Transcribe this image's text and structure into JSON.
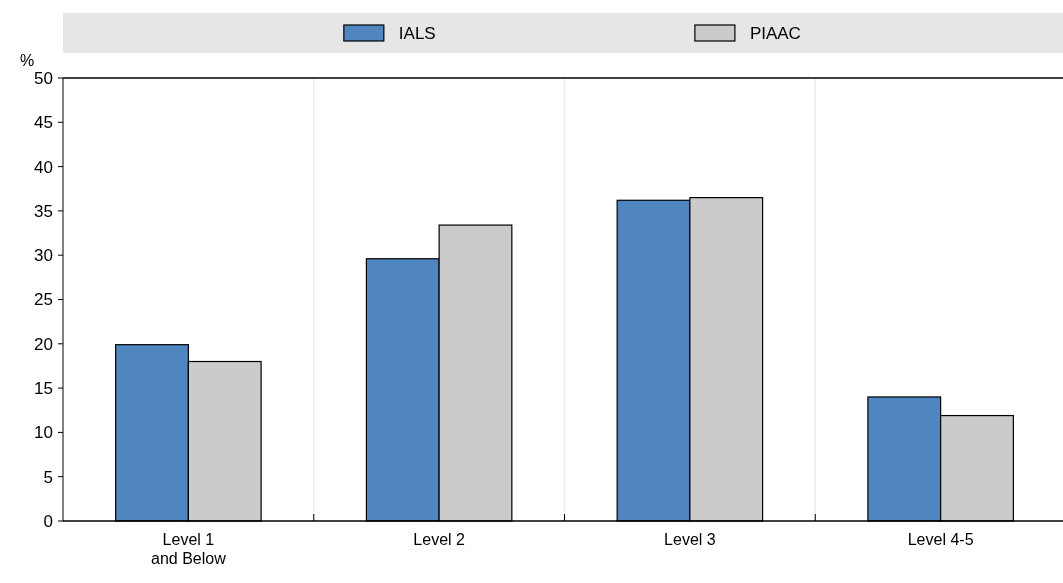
{
  "chart_data": {
    "type": "bar",
    "ylabel": "%",
    "categories": [
      "Level 1\nand Below",
      "Level 2",
      "Level 3",
      "Level 4-5"
    ],
    "series": [
      {
        "name": "IALS",
        "color": "#4f86c0",
        "values": [
          19.9,
          29.6,
          36.2,
          14.0
        ]
      },
      {
        "name": "PIAAC",
        "color": "#cbcbcb",
        "values": [
          18.0,
          33.4,
          36.5,
          11.9
        ]
      }
    ],
    "ylim": [
      0,
      50
    ],
    "yticks": [
      0,
      5,
      10,
      15,
      20,
      25,
      30,
      35,
      40,
      45,
      50
    ],
    "legend": "top",
    "grid": false
  }
}
